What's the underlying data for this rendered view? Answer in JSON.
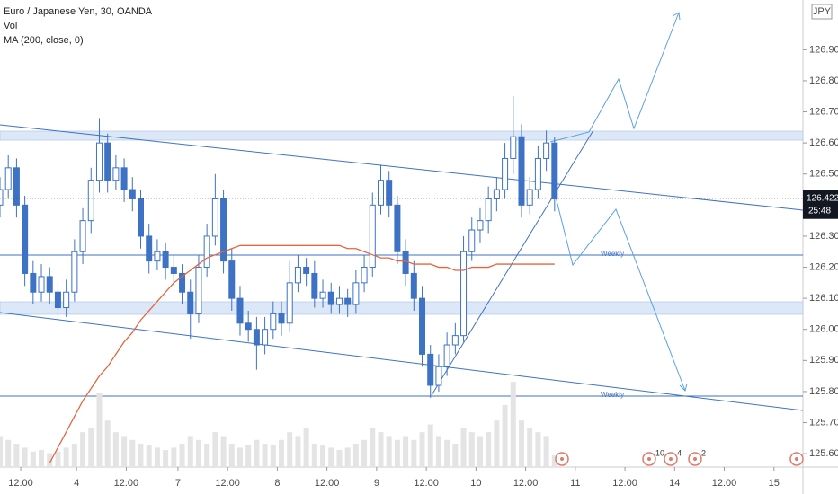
{
  "chart_data": {
    "type": "candlestick",
    "title": "Euro / Japanese Yen, 30, OANDA",
    "indicators": [
      "Vol",
      "MA (200, close, 0)"
    ],
    "currency": "JPY",
    "color": "#3d72c4",
    "ma_color": "#e0673f",
    "xlim": [
      0,
      388
    ],
    "xticks": [
      {
        "value": 10,
        "label": "12:00"
      },
      {
        "value": 37,
        "label": "4"
      },
      {
        "value": 61,
        "label": "12:00"
      },
      {
        "value": 86,
        "label": "7"
      },
      {
        "value": 110,
        "label": "12:00"
      },
      {
        "value": 134,
        "label": "8"
      },
      {
        "value": 158,
        "label": "12:00"
      },
      {
        "value": 182,
        "label": "9"
      },
      {
        "value": 206,
        "label": "12:00"
      },
      {
        "value": 230,
        "label": "10"
      },
      {
        "value": 254,
        "label": "12:00"
      },
      {
        "value": 278,
        "label": "11"
      },
      {
        "value": 302,
        "label": "12:00"
      },
      {
        "value": 326,
        "label": "14"
      },
      {
        "value": 350,
        "label": "12:00"
      },
      {
        "value": 374,
        "label": "15"
      }
    ],
    "ylim": [
      125.557,
      127.06
    ],
    "yticks": [
      {
        "value": 125.6,
        "label": "125.600"
      },
      {
        "value": 125.7,
        "label": "125.700"
      },
      {
        "value": 125.8,
        "label": "125.800"
      },
      {
        "value": 125.9,
        "label": "125.900"
      },
      {
        "value": 126.0,
        "label": "126.000"
      },
      {
        "value": 126.1,
        "label": "126.100"
      },
      {
        "value": 126.2,
        "label": "126.200"
      },
      {
        "value": 126.3,
        "label": "126.300"
      },
      {
        "value": 126.5,
        "label": "126.500"
      },
      {
        "value": 126.6,
        "label": "126.600"
      },
      {
        "value": 126.7,
        "label": "126.700"
      },
      {
        "value": 126.8,
        "label": "126.800"
      },
      {
        "value": 126.9,
        "label": "126.900"
      }
    ],
    "x": [
      0,
      4,
      8,
      12,
      16,
      20,
      24,
      28,
      32,
      36,
      40,
      44,
      48,
      52,
      56,
      60,
      64,
      68,
      72,
      76,
      80,
      84,
      88,
      92,
      96,
      100,
      104,
      108,
      112,
      116,
      120,
      124,
      128,
      132,
      136,
      140,
      144,
      148,
      152,
      156,
      160,
      164,
      168,
      172,
      176,
      180,
      184,
      188,
      192,
      196,
      200,
      204,
      208,
      212,
      216,
      220,
      224,
      228,
      232,
      236,
      240,
      244,
      248,
      252,
      256,
      260,
      264,
      268
    ],
    "open": [
      126.4,
      126.45,
      126.52,
      126.4,
      126.18,
      126.12,
      126.17,
      126.12,
      126.07,
      126.12,
      126.25,
      126.35,
      126.48,
      126.6,
      126.48,
      126.52,
      126.45,
      126.42,
      126.3,
      126.22,
      126.25,
      126.2,
      126.18,
      126.12,
      126.05,
      126.2,
      126.3,
      126.42,
      126.22,
      126.1,
      126.02,
      126.0,
      125.95,
      126.0,
      126.05,
      126.02,
      126.15,
      126.2,
      126.18,
      126.1,
      126.12,
      126.08,
      126.1,
      126.08,
      126.15,
      126.2,
      126.4,
      126.48,
      126.4,
      126.25,
      126.18,
      126.1,
      125.92,
      125.82,
      125.88,
      125.95,
      125.98,
      126.25,
      126.32,
      126.35,
      126.42,
      126.45,
      126.55,
      126.62,
      126.4,
      126.45,
      126.55,
      126.6
    ],
    "high": [
      126.49,
      126.56,
      126.55,
      126.43,
      126.22,
      126.21,
      126.2,
      126.15,
      126.16,
      126.29,
      126.39,
      126.52,
      126.68,
      126.63,
      126.56,
      126.55,
      126.49,
      126.45,
      126.34,
      126.29,
      126.28,
      126.24,
      126.21,
      126.16,
      126.24,
      126.34,
      126.5,
      126.45,
      126.26,
      126.14,
      126.06,
      126.04,
      126.04,
      126.09,
      126.09,
      126.22,
      126.24,
      126.23,
      126.22,
      126.16,
      126.15,
      126.14,
      126.13,
      126.19,
      126.24,
      126.44,
      126.53,
      126.51,
      126.43,
      126.29,
      126.22,
      126.14,
      125.95,
      125.92,
      125.99,
      126.02,
      126.3,
      126.36,
      126.39,
      126.46,
      126.49,
      126.6,
      126.75,
      126.66,
      126.49,
      126.59,
      126.64,
      126.62
    ],
    "low": [
      126.36,
      126.42,
      126.36,
      126.14,
      126.08,
      126.09,
      126.08,
      126.03,
      126.04,
      126.09,
      126.21,
      126.31,
      126.44,
      126.44,
      126.45,
      126.41,
      126.38,
      126.26,
      126.18,
      126.19,
      126.16,
      126.14,
      126.08,
      125.97,
      126.02,
      126.17,
      126.27,
      126.18,
      126.06,
      125.98,
      125.96,
      125.87,
      125.92,
      125.97,
      125.98,
      125.99,
      126.12,
      126.14,
      126.07,
      126.07,
      126.05,
      126.05,
      126.04,
      126.05,
      126.12,
      126.17,
      126.37,
      126.36,
      126.21,
      126.14,
      126.06,
      125.88,
      125.78,
      125.8,
      125.85,
      125.92,
      125.96,
      126.22,
      126.28,
      126.31,
      126.38,
      126.42,
      126.5,
      126.36,
      126.37,
      126.42,
      126.51,
      126.38
    ],
    "close": [
      126.45,
      126.52,
      126.4,
      126.18,
      126.12,
      126.17,
      126.12,
      126.07,
      126.12,
      126.25,
      126.35,
      126.48,
      126.6,
      126.48,
      126.52,
      126.45,
      126.42,
      126.3,
      126.22,
      126.25,
      126.2,
      126.18,
      126.12,
      126.05,
      126.2,
      126.3,
      126.42,
      126.22,
      126.1,
      126.02,
      126.0,
      125.95,
      126.0,
      126.05,
      126.02,
      126.15,
      126.2,
      126.18,
      126.1,
      126.12,
      126.08,
      126.1,
      126.08,
      126.15,
      126.2,
      126.4,
      126.48,
      126.4,
      126.25,
      126.18,
      126.1,
      125.92,
      125.82,
      125.88,
      125.95,
      125.98,
      126.25,
      126.32,
      126.35,
      126.42,
      126.45,
      126.55,
      126.62,
      126.4,
      126.45,
      126.55,
      126.6,
      126.42
    ],
    "ma": [
      null,
      null,
      null,
      null,
      null,
      null,
      125.57,
      125.62,
      125.67,
      125.72,
      125.77,
      125.81,
      125.85,
      125.88,
      125.92,
      125.96,
      125.99,
      126.03,
      126.06,
      126.09,
      126.12,
      126.15,
      126.17,
      126.19,
      126.21,
      126.23,
      126.24,
      126.25,
      126.26,
      126.27,
      126.27,
      126.27,
      126.27,
      126.27,
      126.27,
      126.27,
      126.27,
      126.27,
      126.27,
      126.27,
      126.27,
      126.27,
      126.26,
      126.26,
      126.25,
      126.24,
      126.23,
      126.23,
      126.22,
      126.22,
      126.21,
      126.21,
      126.21,
      126.2,
      126.2,
      126.19,
      126.19,
      126.2,
      126.2,
      126.2,
      126.21,
      126.21,
      126.21,
      126.21,
      126.21,
      126.21,
      126.21,
      126.21
    ],
    "volume": [
      40,
      35,
      30,
      25,
      20,
      22,
      18,
      20,
      25,
      30,
      45,
      50,
      95,
      60,
      45,
      40,
      35,
      30,
      28,
      25,
      22,
      25,
      30,
      40,
      35,
      30,
      45,
      40,
      30,
      25,
      28,
      35,
      30,
      28,
      35,
      45,
      40,
      50,
      30,
      28,
      25,
      22,
      25,
      30,
      35,
      50,
      45,
      40,
      35,
      40,
      35,
      45,
      55,
      40,
      35,
      30,
      50,
      45,
      40,
      45,
      60,
      80,
      110,
      60,
      50,
      45,
      40,
      15
    ],
    "last_price": 126.422,
    "countdown": "25:48",
    "level_label": "Weekly",
    "events": [
      10,
      4,
      2
    ]
  }
}
